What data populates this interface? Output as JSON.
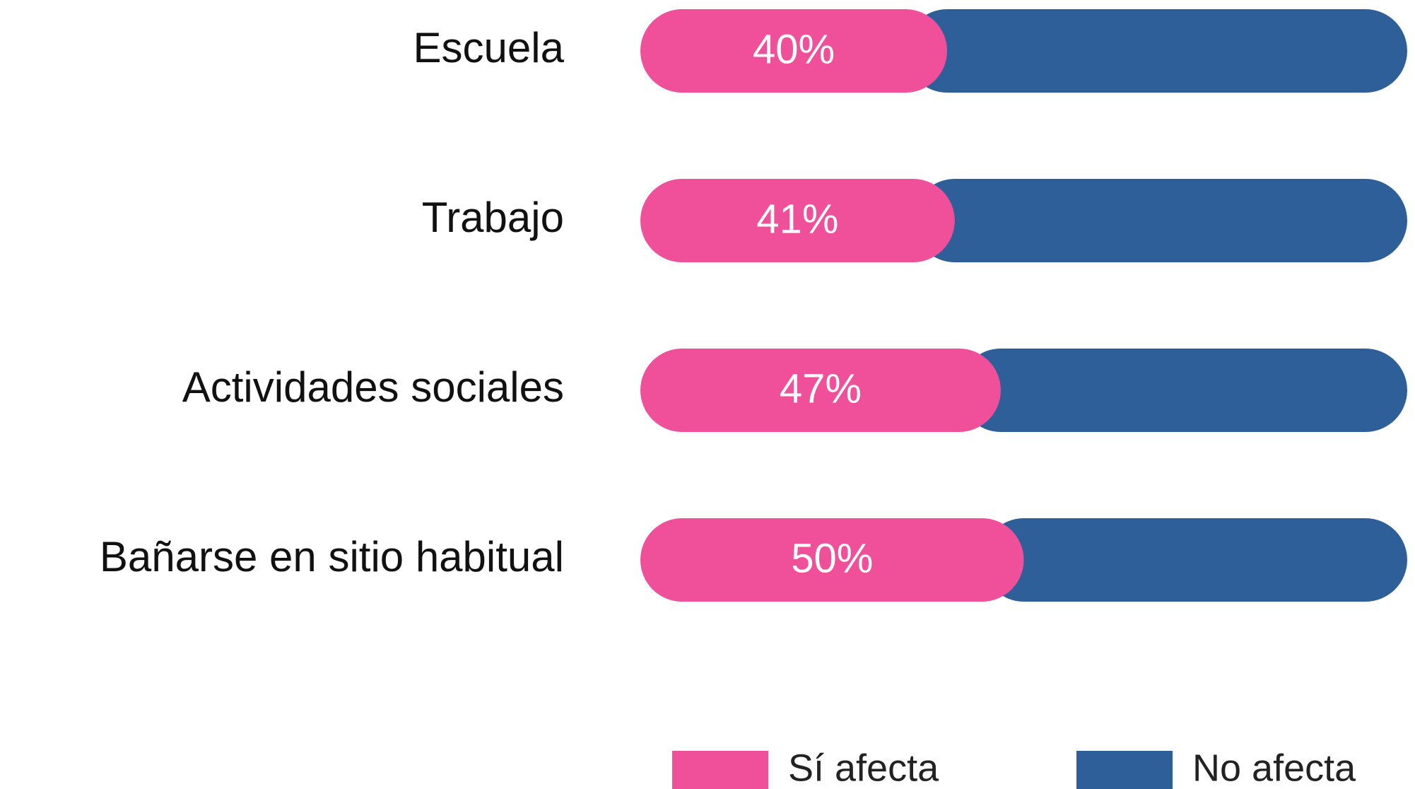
{
  "chart_data": {
    "type": "stacked-bar-horizontal",
    "categories": [
      "Escuela",
      "Trabajo",
      "Actividades sociales",
      "Bañarse en sitio habitual"
    ],
    "series": [
      {
        "name": "Sí afecta",
        "color": "#f0509a",
        "values": [
          40,
          41,
          47,
          50
        ],
        "value_labels": [
          "40%",
          "41%",
          "47%",
          "50%"
        ]
      },
      {
        "name": "No afecta",
        "color": "#2e5f98",
        "values": [
          60,
          59,
          53,
          50
        ]
      }
    ],
    "xlim": [
      0,
      100
    ]
  }
}
